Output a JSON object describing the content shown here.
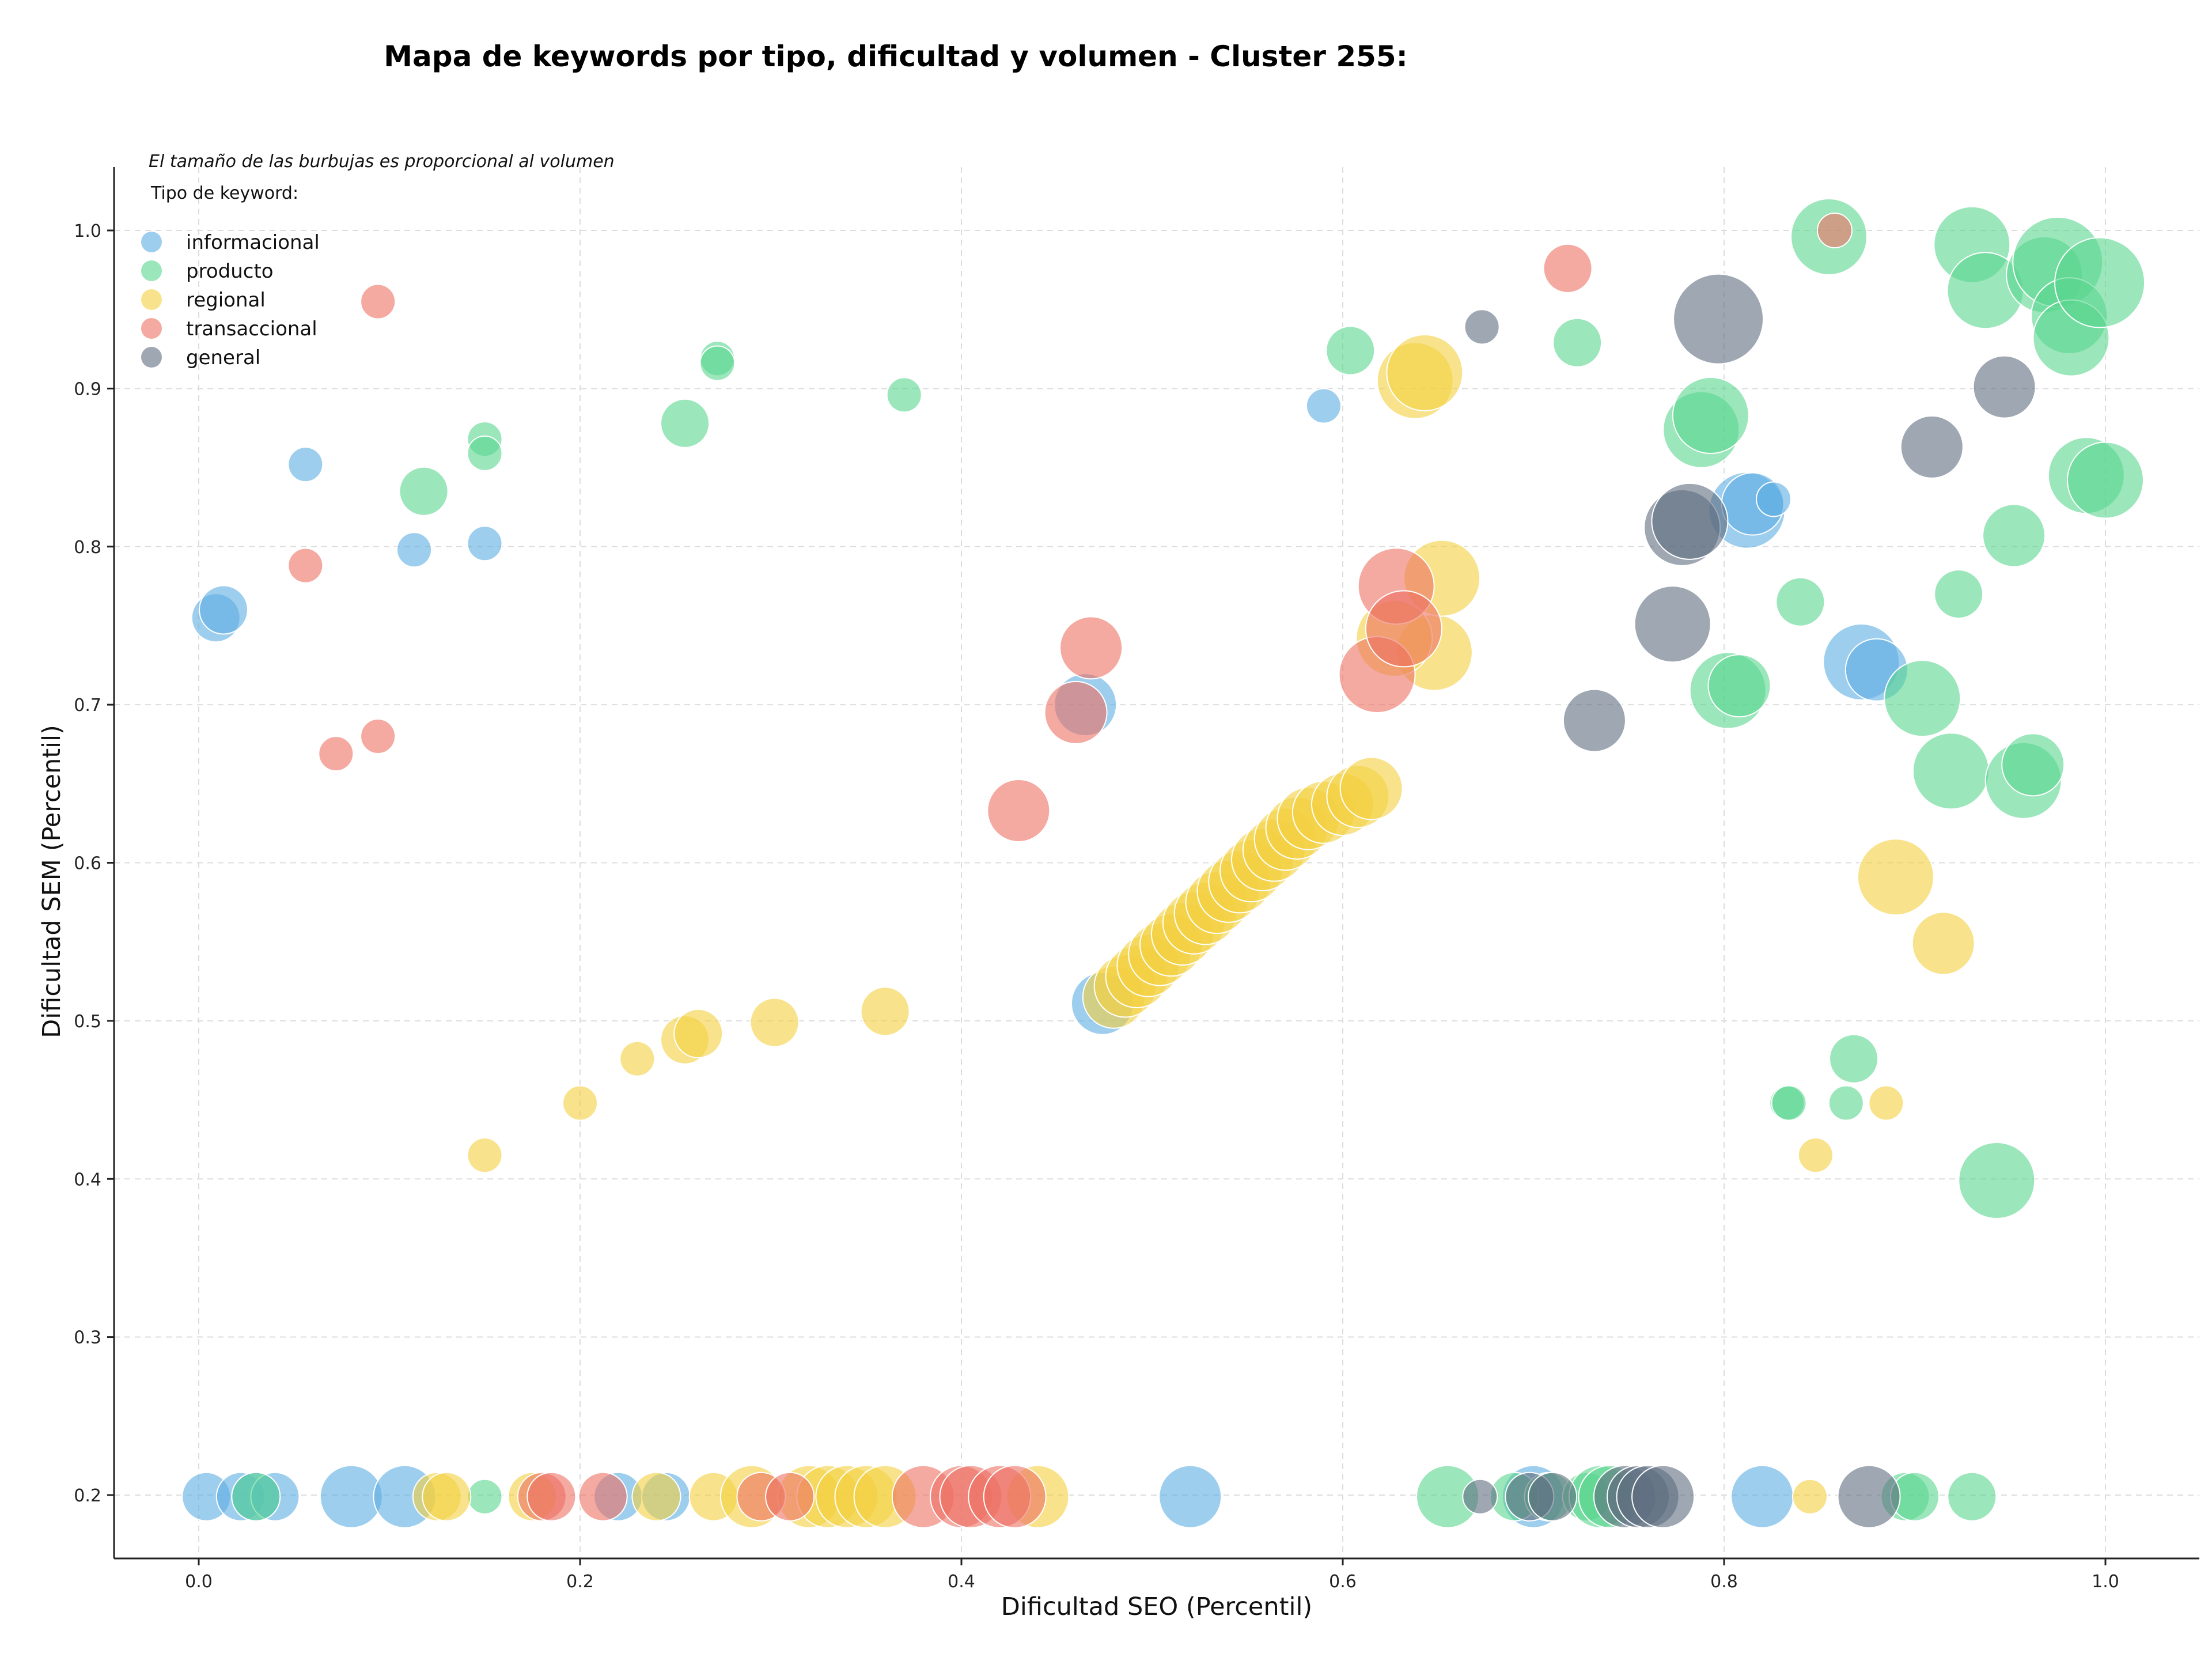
{
  "chart_data": {
    "type": "scatter",
    "title": "Mapa de keywords por tipo, dificultad y volumen - Cluster 255:",
    "xlabel": "Dificultad SEO (Percentil)",
    "ylabel": "Dificultad SEM (Percentil)",
    "xlim": [
      -0.045,
      1.05
    ],
    "ylim": [
      0.16,
      1.04
    ],
    "xticks": [
      "0.0",
      "0.2",
      "0.4",
      "0.6",
      "0.8",
      "1.0"
    ],
    "yticks": [
      "0.2",
      "0.3",
      "0.4",
      "0.5",
      "0.6",
      "0.7",
      "0.8",
      "0.9",
      "1.0"
    ],
    "grid": true,
    "note": "El tamaño de las burbujas es proporcional al volumen",
    "legend": {
      "title": "Tipo de keyword:",
      "location": "top-left",
      "items": [
        {
          "label": "informacional",
          "color": "#5DADE2"
        },
        {
          "label": "producto",
          "color": "#58D68D"
        },
        {
          "label": "regional",
          "color": "#F4D03F"
        },
        {
          "label": "transaccional",
          "color": "#EC7063"
        },
        {
          "label": "general",
          "color": "#5D6D7E"
        }
      ]
    },
    "series": [
      {
        "name": "informacional",
        "color": "#5DADE2",
        "points": [
          [
            0.009,
            0.755,
            2
          ],
          [
            0.013,
            0.76,
            2
          ],
          [
            0.056,
            0.852,
            1
          ],
          [
            0.113,
            0.798,
            1
          ],
          [
            0.15,
            0.802,
            1
          ],
          [
            0.465,
            0.7,
            3
          ],
          [
            0.474,
            0.511,
            3
          ],
          [
            0.59,
            0.889,
            1
          ],
          [
            0.812,
            0.823,
            4
          ],
          [
            0.815,
            0.827,
            3
          ],
          [
            0.826,
            0.83,
            1
          ],
          [
            0.872,
            0.727,
            4
          ],
          [
            0.88,
            0.722,
            3
          ],
          [
            0.004,
            0.199,
            2
          ],
          [
            0.022,
            0.199,
            2
          ],
          [
            0.03,
            0.199,
            2
          ],
          [
            0.04,
            0.199,
            2
          ],
          [
            0.08,
            0.199,
            3
          ],
          [
            0.108,
            0.199,
            3
          ],
          [
            0.22,
            0.199,
            2
          ],
          [
            0.245,
            0.199,
            2
          ],
          [
            0.52,
            0.199,
            3
          ],
          [
            0.7,
            0.199,
            3
          ],
          [
            0.82,
            0.199,
            3
          ]
        ]
      },
      {
        "name": "producto",
        "color": "#58D68D",
        "points": [
          [
            0.118,
            0.835,
            2
          ],
          [
            0.15,
            0.868,
            1
          ],
          [
            0.15,
            0.859,
            1
          ],
          [
            0.255,
            0.878,
            2
          ],
          [
            0.272,
            0.919,
            1
          ],
          [
            0.272,
            0.916,
            1
          ],
          [
            0.37,
            0.896,
            1
          ],
          [
            0.604,
            0.924,
            2
          ],
          [
            0.723,
            0.929,
            2
          ],
          [
            0.788,
            0.874,
            4
          ],
          [
            0.793,
            0.883,
            4
          ],
          [
            0.802,
            0.709,
            4
          ],
          [
            0.808,
            0.712,
            3
          ],
          [
            0.833,
            0.448,
            1
          ],
          [
            0.834,
            0.448,
            1
          ],
          [
            0.84,
            0.765,
            2
          ],
          [
            0.855,
            0.996,
            4
          ],
          [
            0.864,
            0.448,
            1
          ],
          [
            0.868,
            0.476,
            2
          ],
          [
            0.904,
            0.704,
            4
          ],
          [
            0.919,
            0.658,
            4
          ],
          [
            0.923,
            0.77,
            2
          ],
          [
            0.93,
            0.991,
            4
          ],
          [
            0.937,
            0.962,
            4
          ],
          [
            0.943,
            0.399,
            4
          ],
          [
            0.952,
            0.807,
            3
          ],
          [
            0.957,
            0.652,
            4
          ],
          [
            0.962,
            0.662,
            3
          ],
          [
            0.968,
            0.972,
            4
          ],
          [
            0.975,
            0.98,
            5
          ],
          [
            0.981,
            0.946,
            4
          ],
          [
            0.982,
            0.932,
            4
          ],
          [
            0.99,
            0.845,
            4
          ],
          [
            0.997,
            0.967,
            5
          ],
          [
            1.0,
            0.842,
            4
          ],
          [
            0.03,
            0.199,
            2
          ],
          [
            0.15,
            0.199,
            1
          ],
          [
            0.655,
            0.199,
            3
          ],
          [
            0.69,
            0.199,
            2
          ],
          [
            0.708,
            0.199,
            2
          ],
          [
            0.728,
            0.199,
            2
          ],
          [
            0.735,
            0.199,
            3
          ],
          [
            0.74,
            0.199,
            3
          ],
          [
            0.895,
            0.199,
            2
          ],
          [
            0.9,
            0.199,
            2
          ],
          [
            0.93,
            0.199,
            2
          ]
        ]
      },
      {
        "name": "regional",
        "color": "#F4D03F",
        "points": [
          [
            0.15,
            0.415,
            1
          ],
          [
            0.2,
            0.448,
            1
          ],
          [
            0.23,
            0.476,
            1
          ],
          [
            0.255,
            0.488,
            2
          ],
          [
            0.262,
            0.492,
            2
          ],
          [
            0.302,
            0.499,
            2
          ],
          [
            0.36,
            0.506,
            2
          ],
          [
            0.48,
            0.515,
            3
          ],
          [
            0.486,
            0.522,
            3
          ],
          [
            0.492,
            0.528,
            3
          ],
          [
            0.498,
            0.535,
            3
          ],
          [
            0.504,
            0.542,
            3
          ],
          [
            0.51,
            0.548,
            3
          ],
          [
            0.516,
            0.555,
            3
          ],
          [
            0.522,
            0.562,
            3
          ],
          [
            0.528,
            0.568,
            3
          ],
          [
            0.534,
            0.575,
            3
          ],
          [
            0.54,
            0.582,
            3
          ],
          [
            0.546,
            0.588,
            3
          ],
          [
            0.552,
            0.595,
            3
          ],
          [
            0.558,
            0.602,
            3
          ],
          [
            0.564,
            0.608,
            3
          ],
          [
            0.57,
            0.615,
            3
          ],
          [
            0.576,
            0.622,
            3
          ],
          [
            0.582,
            0.628,
            3
          ],
          [
            0.59,
            0.632,
            3
          ],
          [
            0.6,
            0.637,
            3
          ],
          [
            0.608,
            0.642,
            3
          ],
          [
            0.615,
            0.647,
            3
          ],
          [
            0.638,
            0.905,
            4
          ],
          [
            0.643,
            0.91,
            4
          ],
          [
            0.648,
            0.733,
            4
          ],
          [
            0.652,
            0.78,
            4
          ],
          [
            0.627,
            0.742,
            4
          ],
          [
            0.848,
            0.415,
            1
          ],
          [
            0.885,
            0.448,
            1
          ],
          [
            0.89,
            0.591,
            4
          ],
          [
            0.915,
            0.549,
            3
          ],
          [
            0.125,
            0.199,
            2
          ],
          [
            0.13,
            0.199,
            2
          ],
          [
            0.175,
            0.199,
            2
          ],
          [
            0.24,
            0.199,
            2
          ],
          [
            0.27,
            0.199,
            2
          ],
          [
            0.29,
            0.199,
            3
          ],
          [
            0.32,
            0.199,
            3
          ],
          [
            0.33,
            0.199,
            3
          ],
          [
            0.34,
            0.199,
            3
          ],
          [
            0.35,
            0.199,
            3
          ],
          [
            0.36,
            0.199,
            3
          ],
          [
            0.44,
            0.199,
            3
          ],
          [
            0.845,
            0.199,
            1
          ]
        ]
      },
      {
        "name": "transaccional",
        "color": "#EC7063",
        "points": [
          [
            0.056,
            0.788,
            1
          ],
          [
            0.072,
            0.669,
            1
          ],
          [
            0.094,
            0.955,
            1
          ],
          [
            0.094,
            0.68,
            1
          ],
          [
            0.43,
            0.633,
            3
          ],
          [
            0.46,
            0.695,
            3
          ],
          [
            0.468,
            0.736,
            3
          ],
          [
            0.618,
            0.719,
            4
          ],
          [
            0.628,
            0.775,
            4
          ],
          [
            0.632,
            0.748,
            4
          ],
          [
            0.718,
            0.976,
            2
          ],
          [
            0.858,
            1.0,
            1
          ],
          [
            0.18,
            0.199,
            2
          ],
          [
            0.185,
            0.199,
            2
          ],
          [
            0.212,
            0.199,
            2
          ],
          [
            0.295,
            0.199,
            2
          ],
          [
            0.31,
            0.199,
            2
          ],
          [
            0.38,
            0.199,
            3
          ],
          [
            0.4,
            0.199,
            3
          ],
          [
            0.405,
            0.199,
            3
          ],
          [
            0.42,
            0.199,
            3
          ],
          [
            0.428,
            0.199,
            3
          ]
        ]
      },
      {
        "name": "general",
        "color": "#5D6D7E",
        "points": [
          [
            0.673,
            0.939,
            1
          ],
          [
            0.732,
            0.69,
            3
          ],
          [
            0.773,
            0.751,
            4
          ],
          [
            0.778,
            0.812,
            4
          ],
          [
            0.782,
            0.816,
            4
          ],
          [
            0.797,
            0.944,
            5
          ],
          [
            0.909,
            0.863,
            3
          ],
          [
            0.947,
            0.901,
            3
          ],
          [
            0.672,
            0.199,
            1
          ],
          [
            0.698,
            0.199,
            2
          ],
          [
            0.71,
            0.199,
            2
          ],
          [
            0.748,
            0.199,
            3
          ],
          [
            0.755,
            0.199,
            3
          ],
          [
            0.76,
            0.199,
            3
          ],
          [
            0.768,
            0.199,
            3
          ],
          [
            0.876,
            0.199,
            3
          ]
        ]
      }
    ]
  }
}
